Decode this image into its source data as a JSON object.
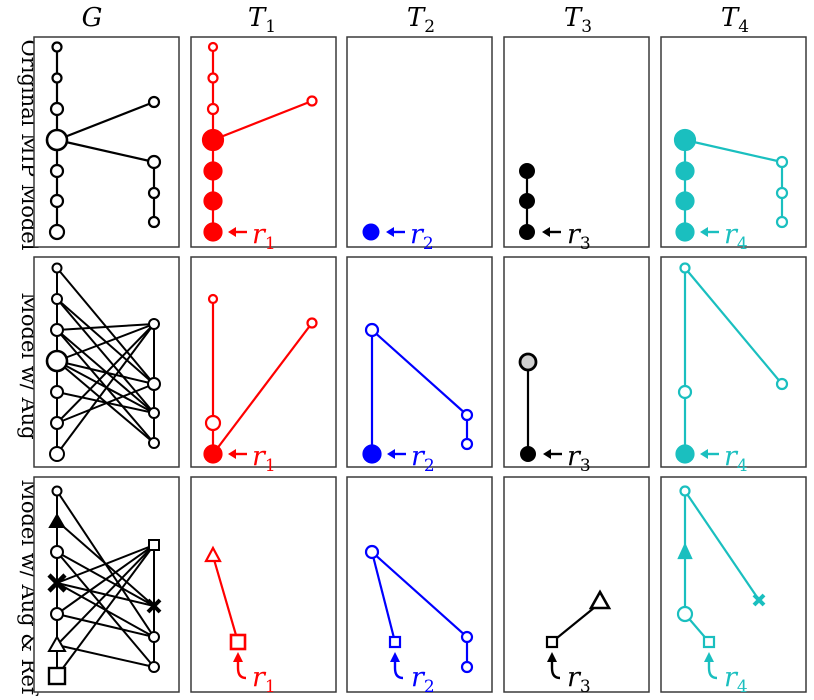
{
  "columns": [
    {
      "main": "G",
      "sub": ""
    },
    {
      "main": "T",
      "sub": "1"
    },
    {
      "main": "T",
      "sub": "2"
    },
    {
      "main": "T",
      "sub": "3"
    },
    {
      "main": "T",
      "sub": "4"
    }
  ],
  "rows": [
    {
      "label": "Original MIP Model"
    },
    {
      "label": "Model w/ Aug"
    },
    {
      "label": "Model w/ Aug & Ref"
    }
  ],
  "colors": {
    "t1": "#ff0000",
    "t2": "#0000ff",
    "t3": "#000000",
    "t4": "#1abfbf",
    "g": "#000000"
  },
  "root_labels": {
    "t1": {
      "main": "r",
      "sub": "1"
    },
    "t2": {
      "main": "r",
      "sub": "2"
    },
    "t3": {
      "main": "r",
      "sub": "3"
    },
    "t4": {
      "main": "r",
      "sub": "4"
    }
  }
}
